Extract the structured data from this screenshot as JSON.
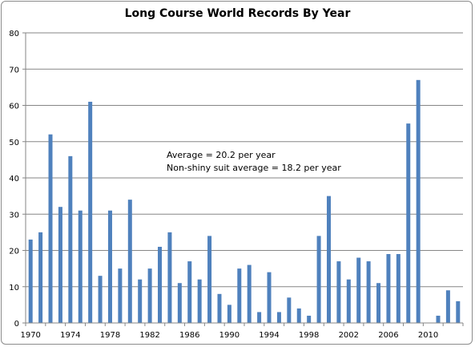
{
  "chart_data": {
    "type": "bar",
    "title": "Long Course World Records By Year",
    "xlabel": "",
    "ylabel": "",
    "ylim": [
      0,
      80
    ],
    "yticks": [
      0,
      10,
      20,
      30,
      40,
      50,
      60,
      70,
      80
    ],
    "grid": true,
    "legend": "none",
    "bar_color": "#4f81bd",
    "x": [
      1970,
      1971,
      1972,
      1973,
      1974,
      1975,
      1976,
      1977,
      1978,
      1979,
      1980,
      1981,
      1982,
      1983,
      1984,
      1985,
      1986,
      1987,
      1988,
      1989,
      1990,
      1991,
      1992,
      1993,
      1994,
      1995,
      1996,
      1997,
      1998,
      1999,
      2000,
      2001,
      2002,
      2003,
      2004,
      2005,
      2006,
      2007,
      2008,
      2009,
      2010,
      2011,
      2012,
      2013
    ],
    "values": [
      23,
      25,
      52,
      32,
      46,
      31,
      61,
      13,
      31,
      15,
      34,
      12,
      15,
      21,
      25,
      11,
      17,
      12,
      24,
      8,
      5,
      15,
      16,
      3,
      14,
      3,
      7,
      4,
      2,
      24,
      35,
      17,
      12,
      18,
      17,
      11,
      19,
      19,
      55,
      67,
      0,
      2,
      9,
      6
    ],
    "xtick_labels": [
      "1970",
      "1974",
      "1978",
      "1982",
      "1986",
      "1990",
      "1994",
      "1998",
      "2002",
      "2006",
      "2010"
    ],
    "annotations": [
      "Average = 20.2 per year",
      "Non-shiny suit average = 18.2 per year"
    ]
  }
}
